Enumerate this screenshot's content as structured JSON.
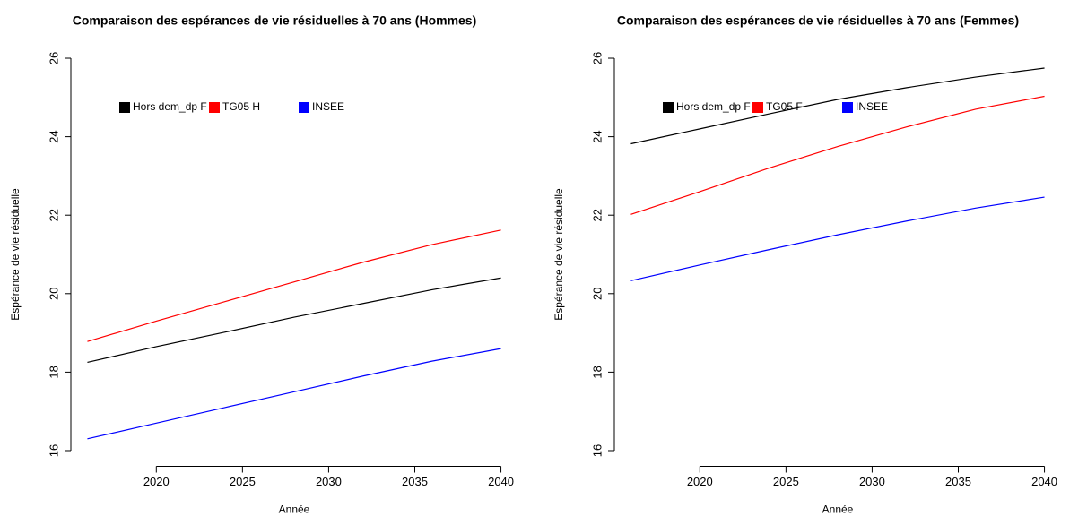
{
  "chart_data": [
    {
      "type": "line",
      "title": "Comparaison des espérances de vie résiduelles à 70 ans (Hommes)",
      "x_label": "Année",
      "y_label": "Espérance de vie résiduelle",
      "x": [
        2016,
        2020,
        2024,
        2028,
        2032,
        2036,
        2040
      ],
      "series": [
        {
          "name": "Hors dem_dp F",
          "color": "#000000",
          "values": [
            18.25,
            18.65,
            19.02,
            19.4,
            19.75,
            20.1,
            20.4
          ]
        },
        {
          "name": "TG05 H",
          "color": "#ff0000",
          "values": [
            18.78,
            19.3,
            19.8,
            20.3,
            20.8,
            21.25,
            21.62
          ]
        },
        {
          "name": "INSEE",
          "color": "#0000ff",
          "values": [
            16.3,
            16.7,
            17.1,
            17.5,
            17.9,
            18.28,
            18.6
          ]
        }
      ],
      "xlim": [
        2015.04,
        2040.96
      ],
      "xticks": [
        2020,
        2025,
        2030,
        2035,
        2040
      ],
      "ylim": [
        15.6,
        26.4
      ],
      "yticks": [
        16,
        18,
        20,
        22,
        24,
        26
      ],
      "legend": "topleft"
    },
    {
      "type": "line",
      "title": "Comparaison des espérances de vie résiduelles à 70 ans (Femmes)",
      "x_label": "Année",
      "y_label": "Espérance de vie résiduelle",
      "x": [
        2016,
        2020,
        2024,
        2028,
        2032,
        2036,
        2040
      ],
      "series": [
        {
          "name": "Hors dem_dp F",
          "color": "#000000",
          "values": [
            23.82,
            24.2,
            24.58,
            24.95,
            25.25,
            25.52,
            25.75
          ]
        },
        {
          "name": "TG05 F",
          "color": "#ff0000",
          "values": [
            22.02,
            22.6,
            23.2,
            23.75,
            24.25,
            24.7,
            25.03
          ]
        },
        {
          "name": "INSEE",
          "color": "#0000ff",
          "values": [
            20.33,
            20.73,
            21.12,
            21.5,
            21.85,
            22.18,
            22.46
          ]
        }
      ],
      "xlim": [
        2015.04,
        2040.96
      ],
      "xticks": [
        2020,
        2025,
        2030,
        2035,
        2040
      ],
      "ylim": [
        15.6,
        26.4
      ],
      "yticks": [
        16,
        18,
        20,
        22,
        24,
        26
      ],
      "legend": "topleft"
    }
  ]
}
